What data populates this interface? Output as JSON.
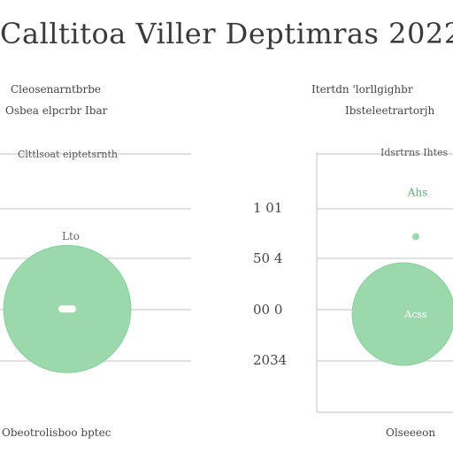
{
  "title": "Calltitoa Viller Deptimras 2022",
  "left_panel": {
    "header_line1": "Cleosenarntbrbe",
    "header_line2": "Osbea elpcrbr Ibar",
    "axis_caption": "Clttlsoat eiptetsrnth",
    "bubble_label": "Lto",
    "bubble_inner_label": "",
    "footer": "Obeotrolisboo bptec"
  },
  "right_panel": {
    "header_line1": "Itertdn 'lorllgighbr",
    "header_line2": "Ibsteleetrartorjh",
    "axis_caption": "Idsrtrns  Ihtes",
    "bubble_label": "Ahs",
    "bubble_inner_label": "Acss",
    "footer": "Olseeeon"
  },
  "y_ticks": [
    "1 01",
    "50 4",
    "00 0",
    "2034"
  ],
  "colors": {
    "bubble_fill": "#9bd9ad",
    "bubble_stroke": "#8ccf9f",
    "grid": "#d6d6d6",
    "marker": "#9bd9ad"
  },
  "chart_data": [
    {
      "type": "scatter",
      "title": "",
      "series": [
        {
          "x": [
            1
          ],
          "y": [
            40
          ],
          "size": [
            1
          ]
        }
      ],
      "ylim": [
        0,
        100
      ],
      "grid": true
    },
    {
      "type": "scatter",
      "title": "",
      "series": [
        {
          "x": [
            1
          ],
          "y": [
            38
          ],
          "size": [
            1
          ]
        },
        {
          "x": [
            1
          ],
          "y": [
            68
          ],
          "size": [
            0.04
          ]
        }
      ],
      "ylim": [
        0,
        100
      ],
      "grid": true
    }
  ]
}
